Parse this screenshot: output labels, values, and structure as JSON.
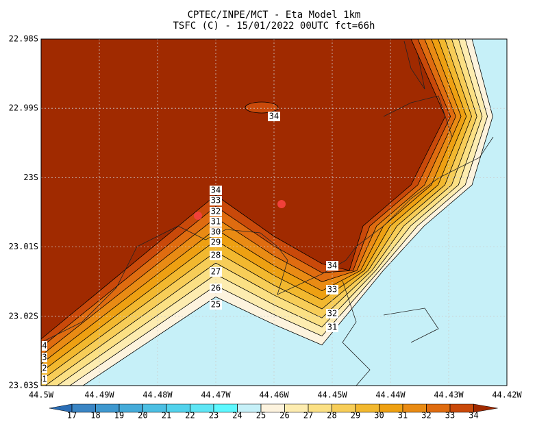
{
  "title": [
    "CPTEC/INPE/MCT -  Eta Model 1km",
    "TSFC (C) - 15/01/2022 00UTC fct=66h"
  ],
  "lat_ticks": [
    "22.98S",
    "22.99S",
    "23S",
    "23.01S",
    "23.02S",
    "23.03S"
  ],
  "lon_ticks": [
    "44.5W",
    "44.49W",
    "44.48W",
    "44.47W",
    "44.46W",
    "44.45W",
    "44.44W",
    "44.43W",
    "44.42W"
  ],
  "contour_labels": [
    "34",
    "33",
    "32",
    "31",
    "30",
    "29",
    "28",
    "27",
    "26",
    "25",
    "34",
    "33",
    "32",
    "31",
    "34",
    "4",
    "3",
    "2",
    "1"
  ],
  "colorbar": {
    "levels": [
      17,
      18,
      19,
      20,
      21,
      22,
      23,
      24,
      25,
      26,
      27,
      28,
      29,
      30,
      31,
      32,
      33,
      34
    ],
    "colors": [
      "#2a6db5",
      "#3a85c4",
      "#3f98cf",
      "#45abd9",
      "#4cbfe3",
      "#52d2ec",
      "#5fe6f5",
      "#5ef8ff",
      "#c6f0f8",
      "#fdf3de",
      "#fdecb0",
      "#fbe084",
      "#f7cd58",
      "#f2b82f",
      "#eea012",
      "#e98b14",
      "#df6c10",
      "#c9490a",
      "#a02a00"
    ]
  }
}
